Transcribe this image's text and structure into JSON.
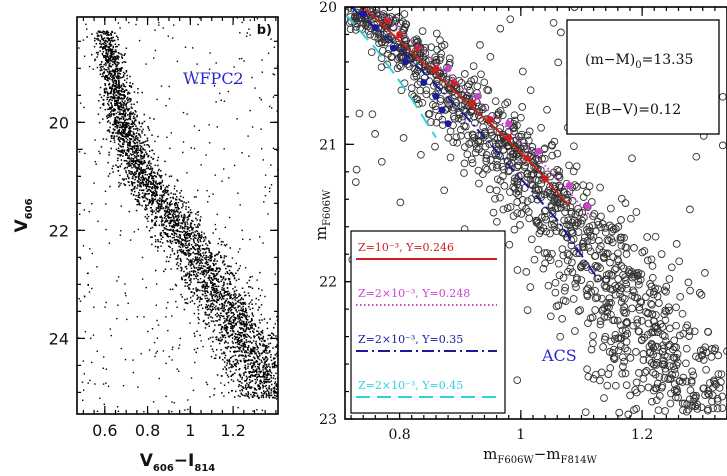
{
  "chart_data": [
    {
      "type": "scatter",
      "panel_label": "b)",
      "instrument_label": "WFPC2",
      "instrument_color": "#2a2ac8",
      "xlabel_main": "V",
      "xlabel_sub1": "606",
      "xlabel_op": "−I",
      "xlabel_sub2": "814",
      "ylabel_main": "V",
      "ylabel_sub": "606",
      "xlim": [
        0.47,
        1.41
      ],
      "ylim": [
        25.4,
        18.05
      ],
      "xticks": [
        0.6,
        0.8,
        1,
        1.2
      ],
      "xtick_labels": [
        "0.6",
        "0.8",
        "1",
        "1.2"
      ],
      "yticks": [
        20,
        22,
        24
      ],
      "ytick_labels": [
        "20",
        "22",
        "24"
      ],
      "sequence_ridge": [
        {
          "x": 0.6,
          "y": 18.3
        },
        {
          "x": 0.63,
          "y": 19.0
        },
        {
          "x": 0.67,
          "y": 19.8
        },
        {
          "x": 0.72,
          "y": 20.5
        },
        {
          "x": 0.79,
          "y": 21.1
        },
        {
          "x": 0.88,
          "y": 21.6
        },
        {
          "x": 0.97,
          "y": 22.1
        },
        {
          "x": 1.05,
          "y": 22.6
        },
        {
          "x": 1.12,
          "y": 23.1
        },
        {
          "x": 1.19,
          "y": 23.6
        },
        {
          "x": 1.26,
          "y": 24.1
        },
        {
          "x": 1.32,
          "y": 24.6
        },
        {
          "x": 1.37,
          "y": 25.1
        }
      ],
      "point_color": "#000000"
    },
    {
      "type": "scatter",
      "instrument_label": "ACS",
      "instrument_color": "#2a2ac8",
      "xlabel_main": "m",
      "xlabel_sub1": "F606W",
      "xlabel_op": "−m",
      "xlabel_sub2": "F814W",
      "ylabel_main": "m",
      "ylabel_sub": "F606W",
      "xlim": [
        0.71,
        1.34
      ],
      "ylim": [
        23.0,
        20.0
      ],
      "xticks": [
        0.8,
        1,
        1.2
      ],
      "xtick_labels": [
        "0.8",
        "1",
        "1.2"
      ],
      "yticks": [
        20,
        21,
        22,
        23
      ],
      "ytick_labels": [
        "20",
        "21",
        "22",
        "23"
      ],
      "info_box": {
        "line1_main": "(m−M)",
        "line1_sub": "0",
        "line1_value": "=13.35",
        "line2": "E(B−V)=0.12"
      },
      "sequence_ridge": [
        {
          "x": 0.74,
          "y": 20.0
        },
        {
          "x": 0.8,
          "y": 20.25
        },
        {
          "x": 0.87,
          "y": 20.55
        },
        {
          "x": 0.94,
          "y": 20.85
        },
        {
          "x": 1.0,
          "y": 21.15
        },
        {
          "x": 1.06,
          "y": 21.45
        },
        {
          "x": 1.11,
          "y": 21.75
        },
        {
          "x": 1.16,
          "y": 22.05
        },
        {
          "x": 1.2,
          "y": 22.35
        },
        {
          "x": 1.25,
          "y": 22.65
        },
        {
          "x": 1.3,
          "y": 22.95
        }
      ],
      "series": [
        {
          "legend": "Z=10⁻³, Y=0.246",
          "color": "#cc2020",
          "dash": "solid",
          "line": [
            {
              "x": 0.74,
              "y": 20.0
            },
            {
              "x": 0.85,
              "y": 20.45
            },
            {
              "x": 0.95,
              "y": 20.85
            },
            {
              "x": 1.02,
              "y": 21.15
            },
            {
              "x": 1.08,
              "y": 21.45
            }
          ],
          "points": [
            {
              "x": 0.78,
              "y": 20.1
            },
            {
              "x": 0.8,
              "y": 20.2
            },
            {
              "x": 0.83,
              "y": 20.3
            },
            {
              "x": 0.86,
              "y": 20.45
            },
            {
              "x": 0.89,
              "y": 20.55
            },
            {
              "x": 0.92,
              "y": 20.7
            },
            {
              "x": 0.95,
              "y": 20.82
            },
            {
              "x": 0.98,
              "y": 20.95
            },
            {
              "x": 1.01,
              "y": 21.1
            },
            {
              "x": 1.04,
              "y": 21.25
            }
          ]
        },
        {
          "legend": "Z=2×10⁻³, Y=0.248",
          "color": "#cc44cc",
          "dash": "dotted",
          "line": [
            {
              "x": 0.76,
              "y": 20.0
            },
            {
              "x": 0.87,
              "y": 20.45
            },
            {
              "x": 0.97,
              "y": 20.85
            },
            {
              "x": 1.05,
              "y": 21.2
            },
            {
              "x": 1.12,
              "y": 21.55
            }
          ],
          "points": [
            {
              "x": 0.88,
              "y": 20.45
            },
            {
              "x": 0.93,
              "y": 20.65
            },
            {
              "x": 0.98,
              "y": 20.85
            },
            {
              "x": 1.03,
              "y": 21.05
            },
            {
              "x": 1.08,
              "y": 21.3
            },
            {
              "x": 1.11,
              "y": 21.45
            }
          ]
        },
        {
          "legend": "Z=2×10⁻³, Y=0.35",
          "color": "#1a1aa0",
          "dash": "dashdot",
          "line": [
            {
              "x": 0.72,
              "y": 20.0
            },
            {
              "x": 0.8,
              "y": 20.3
            },
            {
              "x": 0.9,
              "y": 20.75
            },
            {
              "x": 0.98,
              "y": 21.15
            },
            {
              "x": 1.06,
              "y": 21.55
            },
            {
              "x": 1.13,
              "y": 22.0
            }
          ],
          "points": [
            {
              "x": 0.74,
              "y": 20.05
            },
            {
              "x": 0.76,
              "y": 20.15
            },
            {
              "x": 0.79,
              "y": 20.3
            },
            {
              "x": 0.81,
              "y": 20.4
            },
            {
              "x": 0.84,
              "y": 20.55
            },
            {
              "x": 0.86,
              "y": 20.65
            },
            {
              "x": 0.87,
              "y": 20.75
            },
            {
              "x": 0.88,
              "y": 20.85
            }
          ]
        },
        {
          "legend": "Z=2×10⁻³, Y=0.45",
          "color": "#30d0e0",
          "dash": "dashed",
          "line": [
            {
              "x": 0.71,
              "y": 20.05
            },
            {
              "x": 0.76,
              "y": 20.3
            },
            {
              "x": 0.81,
              "y": 20.6
            },
            {
              "x": 0.86,
              "y": 20.95
            }
          ]
        }
      ]
    }
  ]
}
